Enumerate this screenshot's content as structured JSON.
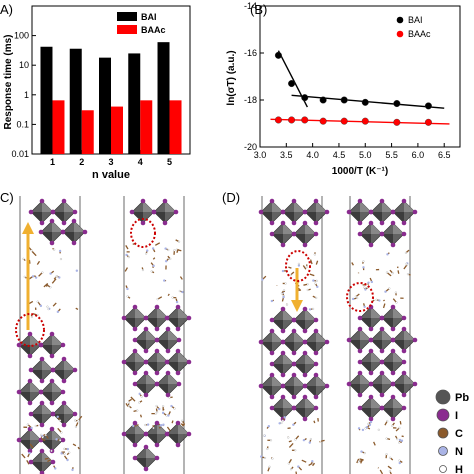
{
  "panels": {
    "A": "A)",
    "B": "(B)",
    "C": "C)",
    "D": "(D)"
  },
  "chart_data": [
    {
      "type": "bar",
      "panel": "A",
      "categories": [
        "1",
        "2",
        "3",
        "4",
        "5"
      ],
      "series": [
        {
          "name": "BAI",
          "color": "#000000",
          "values": [
            42,
            36,
            18,
            25,
            60
          ]
        },
        {
          "name": "BAAc",
          "color": "#ff0000",
          "values": [
            0.65,
            0.3,
            0.4,
            0.65,
            0.65
          ]
        }
      ],
      "title": "",
      "xlabel": "n value",
      "ylabel": "Response time (ms)",
      "yscale": "log",
      "ylim": [
        0.01,
        1000
      ],
      "ytick_labels": [
        "0.01",
        "0.1",
        "1",
        "10",
        "100"
      ],
      "legend_position": "top-right"
    },
    {
      "type": "scatter",
      "panel": "B",
      "series": [
        {
          "name": "BAI",
          "color": "#000000",
          "x": [
            3.35,
            3.6,
            3.85,
            4.2,
            4.6,
            5.0,
            5.6,
            6.2
          ],
          "y": [
            -16.1,
            -17.3,
            -17.9,
            -18.0,
            -18.0,
            -18.1,
            -18.15,
            -18.25
          ]
        },
        {
          "name": "BAAc",
          "color": "#ff0000",
          "x": [
            3.35,
            3.6,
            3.85,
            4.2,
            4.6,
            5.0,
            5.6,
            6.2
          ],
          "y": [
            -18.85,
            -18.85,
            -18.85,
            -18.9,
            -18.9,
            -18.9,
            -18.95,
            -18.95
          ]
        }
      ],
      "fit_lines": [
        {
          "color": "#000000",
          "x": [
            3.35,
            3.9
          ],
          "y": [
            -15.9,
            -18.3
          ]
        },
        {
          "color": "#000000",
          "x": [
            3.6,
            6.5
          ],
          "y": [
            -17.8,
            -18.35
          ]
        },
        {
          "color": "#ff0000",
          "x": [
            3.2,
            6.6
          ],
          "y": [
            -18.82,
            -19.02
          ]
        }
      ],
      "title": "",
      "xlabel": "1000/T (K⁻¹)",
      "ylabel": "ln(σT) (a.u.)",
      "xlim": [
        3.0,
        6.8
      ],
      "ylim": [
        -20,
        -14
      ],
      "xtick_labels": [
        "3.0",
        "3.5",
        "4.0",
        "4.5",
        "5.0",
        "5.5",
        "6.0",
        "6.5"
      ],
      "ytick_labels": [
        "-14",
        "-16",
        "-18",
        "-20"
      ],
      "legend_position": "top-right"
    }
  ],
  "structure_legend": [
    {
      "label": "Pb",
      "color": "#555555"
    },
    {
      "label": "I",
      "color": "#8a2c8f"
    },
    {
      "label": "C",
      "color": "#8b5a2b"
    },
    {
      "label": "N",
      "color": "#aab4e6"
    },
    {
      "label": "H",
      "color": "#ffffff"
    }
  ],
  "colors": {
    "octahedron": "#5a5a5a",
    "highlight": "#cc0000",
    "arrow": "#f0b030"
  }
}
